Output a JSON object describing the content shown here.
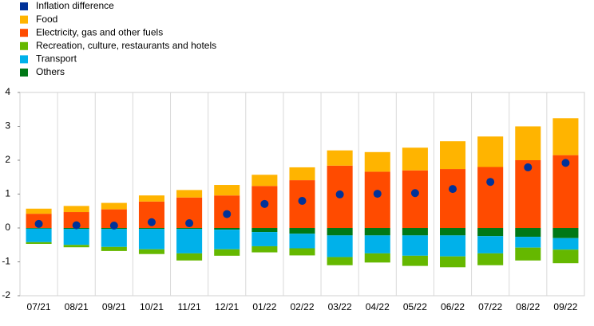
{
  "chart_data": {
    "type": "bar",
    "categories": [
      "07/21",
      "08/21",
      "09/21",
      "10/21",
      "11/21",
      "12/21",
      "01/22",
      "02/22",
      "03/22",
      "04/22",
      "05/22",
      "06/22",
      "07/22",
      "08/22",
      "09/22"
    ],
    "series": [
      {
        "name": "Inflation difference",
        "color": "#003299",
        "type": "dot",
        "values": [
          0.12,
          0.08,
          0.07,
          0.17,
          0.14,
          0.41,
          0.71,
          0.8,
          0.99,
          1.01,
          1.03,
          1.15,
          1.36,
          1.79,
          1.92
        ]
      },
      {
        "name": "Food",
        "color": "#ffb400",
        "values": [
          0.15,
          0.18,
          0.19,
          0.18,
          0.22,
          0.31,
          0.33,
          0.38,
          0.45,
          0.58,
          0.67,
          0.82,
          0.9,
          1.0,
          1.09
        ]
      },
      {
        "name": "Electricity, gas and other fuels",
        "color": "#ff4b00",
        "values": [
          0.42,
          0.47,
          0.55,
          0.78,
          0.9,
          0.96,
          1.24,
          1.41,
          1.84,
          1.66,
          1.7,
          1.74,
          1.8,
          2.0,
          2.15
        ]
      },
      {
        "name": "Recreation, culture, restaurants and hotels",
        "color": "#65b800",
        "values": [
          -0.05,
          -0.07,
          -0.12,
          -0.14,
          -0.21,
          -0.19,
          -0.18,
          -0.21,
          -0.24,
          -0.27,
          -0.3,
          -0.32,
          -0.35,
          -0.38,
          -0.4
        ]
      },
      {
        "name": "Transport",
        "color": "#00b1ea",
        "values": [
          -0.4,
          -0.47,
          -0.53,
          -0.6,
          -0.72,
          -0.58,
          -0.42,
          -0.43,
          -0.64,
          -0.53,
          -0.6,
          -0.62,
          -0.51,
          -0.32,
          -0.34
        ]
      },
      {
        "name": "Others",
        "color": "#007816",
        "values": [
          -0.02,
          -0.03,
          -0.03,
          -0.03,
          -0.03,
          -0.05,
          -0.12,
          -0.17,
          -0.22,
          -0.22,
          -0.22,
          -0.22,
          -0.24,
          -0.26,
          -0.3
        ]
      }
    ],
    "ylim": [
      -2,
      4
    ],
    "yticks": [
      -2,
      -1,
      0,
      1,
      2,
      3,
      4
    ]
  }
}
